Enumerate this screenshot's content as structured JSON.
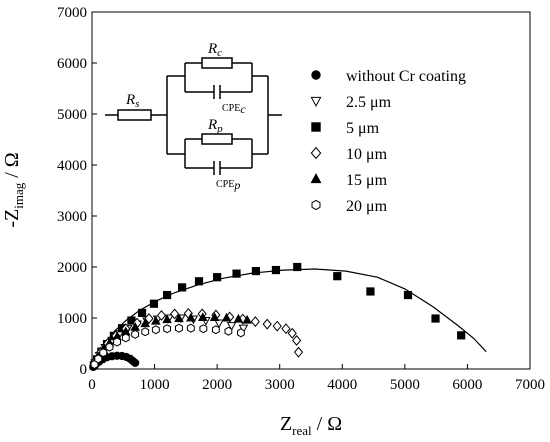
{
  "chart_data": {
    "type": "scatter",
    "xlabel": "Z",
    "xlabel_sub": "real",
    "xlabel_unit": " / Ω",
    "ylabel_prefix": "-Z",
    "ylabel_sub": "imag",
    "ylabel_unit": " / Ω",
    "xlim": [
      0,
      7000
    ],
    "ylim": [
      0,
      7000
    ],
    "xticks": [
      "0",
      "1000",
      "2000",
      "3000",
      "4000",
      "5000",
      "6000",
      "7000"
    ],
    "yticks": [
      "0",
      "1000",
      "2000",
      "3000",
      "4000",
      "5000",
      "6000",
      "7000"
    ],
    "legend_position": "top-right",
    "series": [
      {
        "name": "without Cr coating",
        "marker": "circle-filled",
        "points": [
          [
            20,
            40
          ],
          [
            60,
            90
          ],
          [
            110,
            140
          ],
          [
            170,
            190
          ],
          [
            240,
            230
          ],
          [
            320,
            250
          ],
          [
            400,
            260
          ],
          [
            480,
            255
          ],
          [
            550,
            235
          ],
          [
            610,
            200
          ],
          [
            650,
            160
          ],
          [
            690,
            120
          ]
        ]
      },
      {
        "name": "2.5 μm",
        "marker": "triangle-down-open",
        "points": [
          [
            50,
            120
          ],
          [
            120,
            260
          ],
          [
            210,
            420
          ],
          [
            320,
            560
          ],
          [
            440,
            690
          ],
          [
            570,
            790
          ],
          [
            720,
            880
          ],
          [
            880,
            940
          ],
          [
            1050,
            980
          ],
          [
            1230,
            1000
          ],
          [
            1420,
            1000
          ],
          [
            1620,
            980
          ],
          [
            1820,
            950
          ],
          [
            2030,
            900
          ],
          [
            2230,
            850
          ],
          [
            2420,
            800
          ]
        ]
      },
      {
        "name": "5 μm",
        "marker": "square-filled",
        "points": [
          [
            30,
            70
          ],
          [
            80,
            190
          ],
          [
            150,
            340
          ],
          [
            240,
            490
          ],
          [
            350,
            650
          ],
          [
            480,
            800
          ],
          [
            630,
            950
          ],
          [
            800,
            1100
          ],
          [
            990,
            1280
          ],
          [
            1200,
            1450
          ],
          [
            1440,
            1600
          ],
          [
            1710,
            1720
          ],
          [
            2000,
            1800
          ],
          [
            2310,
            1870
          ],
          [
            2620,
            1920
          ],
          [
            2940,
            1940
          ],
          [
            3280,
            2000
          ],
          [
            3920,
            1820
          ],
          [
            4450,
            1520
          ],
          [
            5050,
            1450
          ],
          [
            5490,
            990
          ],
          [
            5900,
            660
          ]
        ]
      },
      {
        "name": "10 μm",
        "marker": "diamond-open",
        "points": [
          [
            60,
            160
          ],
          [
            140,
            330
          ],
          [
            250,
            500
          ],
          [
            380,
            650
          ],
          [
            540,
            790
          ],
          [
            720,
            900
          ],
          [
            910,
            990
          ],
          [
            1110,
            1050
          ],
          [
            1320,
            1080
          ],
          [
            1540,
            1090
          ],
          [
            1760,
            1080
          ],
          [
            1980,
            1060
          ],
          [
            2200,
            1020
          ],
          [
            2410,
            980
          ],
          [
            2610,
            930
          ],
          [
            2800,
            880
          ],
          [
            2960,
            840
          ],
          [
            3100,
            790
          ],
          [
            3200,
            700
          ],
          [
            3270,
            560
          ],
          [
            3300,
            330
          ]
        ]
      },
      {
        "name": "15 μm",
        "marker": "triangle-up-filled",
        "points": [
          [
            40,
            110
          ],
          [
            100,
            240
          ],
          [
            180,
            380
          ],
          [
            280,
            510
          ],
          [
            400,
            630
          ],
          [
            540,
            730
          ],
          [
            690,
            820
          ],
          [
            850,
            890
          ],
          [
            1020,
            940
          ],
          [
            1200,
            970
          ],
          [
            1390,
            990
          ],
          [
            1580,
            1000
          ],
          [
            1770,
            1010
          ],
          [
            1960,
            1010
          ],
          [
            2150,
            1000
          ],
          [
            2340,
            980
          ],
          [
            2480,
            960
          ]
        ]
      },
      {
        "name": "20 μm",
        "marker": "hexagon-open",
        "points": [
          [
            40,
            90
          ],
          [
            100,
            200
          ],
          [
            180,
            320
          ],
          [
            280,
            430
          ],
          [
            400,
            530
          ],
          [
            540,
            610
          ],
          [
            690,
            680
          ],
          [
            850,
            730
          ],
          [
            1020,
            770
          ],
          [
            1200,
            790
          ],
          [
            1390,
            800
          ],
          [
            1580,
            800
          ],
          [
            1780,
            790
          ],
          [
            1980,
            770
          ],
          [
            2180,
            740
          ],
          [
            2380,
            710
          ]
        ]
      }
    ],
    "fit_curve": {
      "points": [
        [
          0,
          0
        ],
        [
          50,
          140
        ],
        [
          120,
          320
        ],
        [
          220,
          520
        ],
        [
          360,
          740
        ],
        [
          540,
          950
        ],
        [
          760,
          1150
        ],
        [
          1020,
          1330
        ],
        [
          1330,
          1500
        ],
        [
          1690,
          1650
        ],
        [
          2100,
          1780
        ],
        [
          2560,
          1880
        ],
        [
          3060,
          1940
        ],
        [
          3560,
          1960
        ],
        [
          4060,
          1920
        ],
        [
          4560,
          1800
        ],
        [
          5000,
          1570
        ],
        [
          5450,
          1220
        ],
        [
          5850,
          850
        ],
        [
          6100,
          600
        ],
        [
          6300,
          340
        ]
      ]
    },
    "inset": {
      "labels": {
        "rs": "R",
        "rs_sub": "s",
        "rc": "R",
        "rc_sub": "c",
        "rp": "R",
        "rp_sub": "p",
        "cpec": "CPE",
        "cpec_sub": "c",
        "cpep": "CPE",
        "cpep_sub": "p"
      }
    }
  }
}
